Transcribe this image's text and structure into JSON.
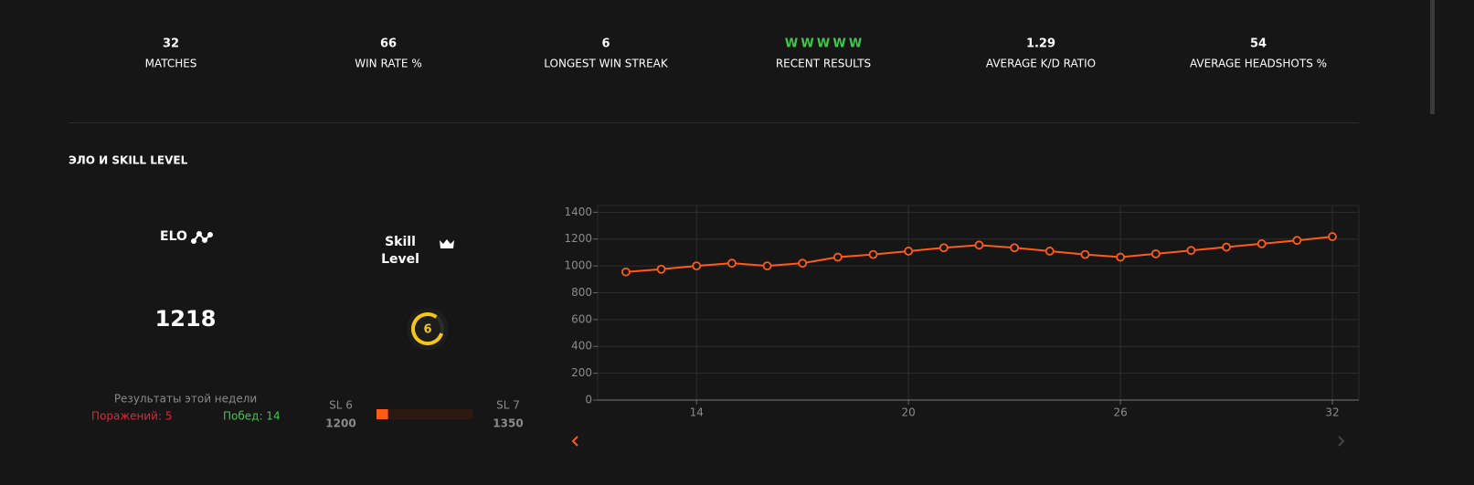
{
  "stats": [
    {
      "value": 32,
      "label": "MATCHES"
    },
    {
      "value": 66,
      "label": "WIN RATE %"
    },
    {
      "value": 6,
      "label": "LONGEST WIN STREAK"
    },
    {
      "results": [
        "W",
        "W",
        "W",
        "W",
        "W"
      ],
      "label": "RECENT RESULTS"
    },
    {
      "value": 1.29,
      "label": "AVERAGE K/D RATIO"
    },
    {
      "value": 54,
      "label": "AVERAGE HEADSHOTS %"
    }
  ],
  "section_title": "ЭЛО И SKILL LEVEL",
  "elo": {
    "label": "ELO",
    "value": 1218
  },
  "skill": {
    "label": "Skill Level",
    "level": 6
  },
  "week": {
    "title": "Результаты этой недели",
    "losses": "Поражений: 5",
    "wins": "Побед: 14"
  },
  "progress": {
    "from_label": "SL 6",
    "from_value": 1200,
    "to_label": "SL 7",
    "to_value": 1350
  },
  "chart_data": {
    "type": "line",
    "x": [
      12,
      13,
      14,
      15,
      16,
      17,
      18,
      19,
      20,
      21,
      22,
      23,
      24,
      25,
      26,
      27,
      28,
      29,
      30,
      31,
      32
    ],
    "series": [
      {
        "name": "ELO",
        "color": "#ff5a16",
        "values": [
          955,
          975,
          1000,
          1020,
          1000,
          1020,
          1065,
          1085,
          1110,
          1135,
          1155,
          1135,
          1110,
          1085,
          1065,
          1090,
          1115,
          1140,
          1165,
          1190,
          1218
        ]
      }
    ],
    "xlim": [
      11.2,
      32.75
    ],
    "ylim": [
      0,
      1450
    ],
    "xticks": [
      14,
      20,
      26,
      32
    ],
    "yticks": [
      0,
      200,
      400,
      600,
      800,
      1000,
      1200,
      1400
    ],
    "grid": true
  }
}
